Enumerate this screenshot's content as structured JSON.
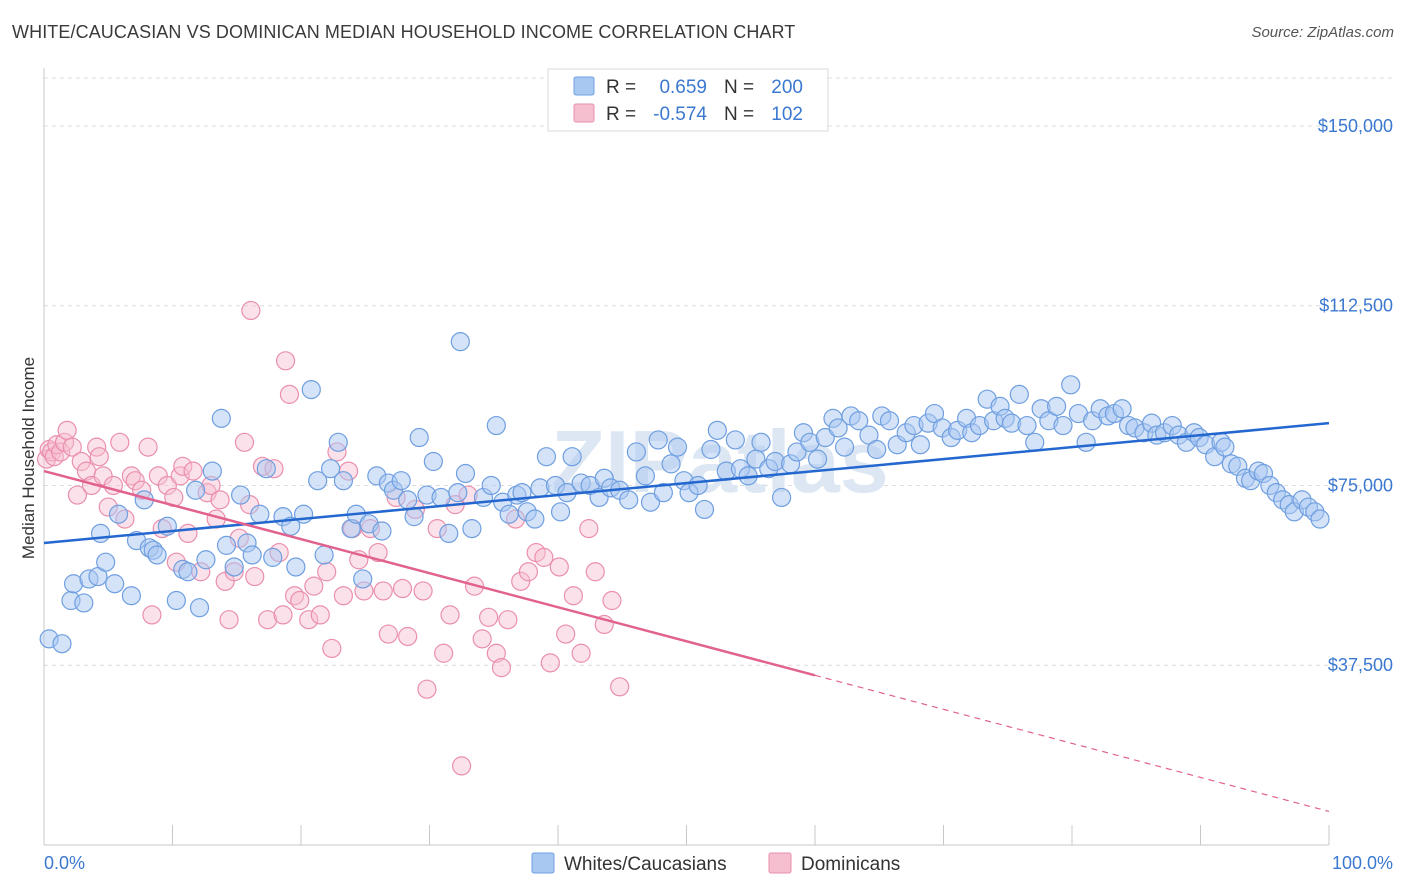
{
  "chart_data": {
    "type": "scatter",
    "title": "WHITE/CAUCASIAN VS DOMINICAN MEDIAN HOUSEHOLD INCOME CORRELATION CHART",
    "source": "Source: ZipAtlas.com",
    "watermark": "ZIPatlas",
    "xlabel": "",
    "ylabel": "Median Household Income",
    "xlim": [
      0,
      100
    ],
    "ylim": [
      0,
      160000
    ],
    "x_tick_labels": [
      "0.0%",
      "100.0%"
    ],
    "y_ticks": [
      37500,
      75000,
      112500,
      150000
    ],
    "y_tick_labels": [
      "$37,500",
      "$75,000",
      "$112,500",
      "$150,000"
    ],
    "grid": true,
    "legend_position": "bottom",
    "stats_box_position": "top-center",
    "colors": {
      "blue_fill": "#a9c8f1",
      "blue_stroke": "#6f9fe0",
      "blue_line": "#2468cf",
      "pink_fill": "#f6bfd0",
      "pink_stroke": "#ea8fad",
      "pink_line": "#e2628f",
      "axis_label_blue": "#3b78d0",
      "grid": "#dcdcdc"
    },
    "stats": [
      {
        "r_label": "R =",
        "r_value": "0.659",
        "n_label": "N =",
        "n_value": "200"
      },
      {
        "r_label": "R =",
        "r_value": "-0.574",
        "n_label": "N =",
        "n_value": "102"
      }
    ],
    "series": [
      {
        "name": "Whites/Caucasians",
        "trend": {
          "x": [
            0,
            100
          ],
          "y": [
            63000,
            88000
          ],
          "dashed_from": null
        },
        "points": [
          [
            0.4,
            43000
          ],
          [
            1.4,
            42000
          ],
          [
            2.1,
            51000
          ],
          [
            2.3,
            54500
          ],
          [
            3.1,
            50500
          ],
          [
            3.5,
            55500
          ],
          [
            4.2,
            56000
          ],
          [
            4.4,
            65000
          ],
          [
            4.8,
            59000
          ],
          [
            5.5,
            54500
          ],
          [
            5.8,
            69000
          ],
          [
            6.8,
            52000
          ],
          [
            7.2,
            63500
          ],
          [
            7.8,
            72000
          ],
          [
            8.2,
            62000
          ],
          [
            8.5,
            61500
          ],
          [
            8.8,
            60500
          ],
          [
            9.6,
            66500
          ],
          [
            10.3,
            51000
          ],
          [
            10.8,
            57500
          ],
          [
            11.2,
            57000
          ],
          [
            11.8,
            74000
          ],
          [
            12.1,
            49500
          ],
          [
            12.6,
            59500
          ],
          [
            13.1,
            78000
          ],
          [
            13.8,
            89000
          ],
          [
            14.2,
            62500
          ],
          [
            14.8,
            58000
          ],
          [
            15.3,
            73000
          ],
          [
            15.8,
            63000
          ],
          [
            16.2,
            60500
          ],
          [
            16.8,
            69000
          ],
          [
            17.3,
            78500
          ],
          [
            17.8,
            60000
          ],
          [
            18.6,
            68500
          ],
          [
            19.2,
            66500
          ],
          [
            19.6,
            58000
          ],
          [
            20.2,
            69000
          ],
          [
            20.8,
            95000
          ],
          [
            21.3,
            76000
          ],
          [
            21.8,
            60500
          ],
          [
            22.3,
            78500
          ],
          [
            22.9,
            84000
          ],
          [
            23.3,
            76000
          ],
          [
            23.9,
            66000
          ],
          [
            24.3,
            69000
          ],
          [
            24.8,
            55500
          ],
          [
            25.3,
            67000
          ],
          [
            25.9,
            77000
          ],
          [
            26.3,
            65500
          ],
          [
            26.8,
            75500
          ],
          [
            27.2,
            74000
          ],
          [
            27.8,
            76000
          ],
          [
            28.3,
            72000
          ],
          [
            28.8,
            68500
          ],
          [
            29.2,
            85000
          ],
          [
            29.8,
            73000
          ],
          [
            30.3,
            80000
          ],
          [
            30.9,
            72500
          ],
          [
            31.5,
            65000
          ],
          [
            32.2,
            73500
          ],
          [
            32.4,
            105000
          ],
          [
            32.8,
            77500
          ],
          [
            33.3,
            66000
          ],
          [
            34.2,
            72500
          ],
          [
            34.8,
            75000
          ],
          [
            35.2,
            87500
          ],
          [
            35.7,
            71500
          ],
          [
            36.2,
            69000
          ],
          [
            36.8,
            73000
          ],
          [
            37.2,
            73500
          ],
          [
            37.6,
            69500
          ],
          [
            38.2,
            68000
          ],
          [
            38.6,
            74500
          ],
          [
            39.1,
            81000
          ],
          [
            39.8,
            75000
          ],
          [
            40.2,
            69500
          ],
          [
            40.7,
            73500
          ],
          [
            41.1,
            81000
          ],
          [
            41.8,
            75500
          ],
          [
            42.5,
            75000
          ],
          [
            43.2,
            72500
          ],
          [
            43.6,
            76500
          ],
          [
            44.1,
            74500
          ],
          [
            44.8,
            74000
          ],
          [
            45.5,
            72000
          ],
          [
            46.1,
            82000
          ],
          [
            46.8,
            77000
          ],
          [
            47.2,
            71500
          ],
          [
            47.8,
            84500
          ],
          [
            48.2,
            73500
          ],
          [
            48.8,
            79500
          ],
          [
            49.3,
            83000
          ],
          [
            49.8,
            76000
          ],
          [
            50.2,
            73500
          ],
          [
            50.9,
            75000
          ],
          [
            51.4,
            70000
          ],
          [
            51.9,
            82500
          ],
          [
            52.4,
            86500
          ],
          [
            53.1,
            78000
          ],
          [
            53.8,
            84500
          ],
          [
            54.2,
            78500
          ],
          [
            54.8,
            77000
          ],
          [
            55.4,
            80500
          ],
          [
            55.8,
            84000
          ],
          [
            56.4,
            78500
          ],
          [
            56.9,
            80000
          ],
          [
            57.4,
            72500
          ],
          [
            58.1,
            79500
          ],
          [
            58.6,
            82000
          ],
          [
            59.1,
            86000
          ],
          [
            59.6,
            84000
          ],
          [
            60.2,
            80500
          ],
          [
            60.8,
            85000
          ],
          [
            61.4,
            89000
          ],
          [
            61.8,
            87000
          ],
          [
            62.3,
            83000
          ],
          [
            62.8,
            89500
          ],
          [
            63.4,
            88500
          ],
          [
            64.2,
            85500
          ],
          [
            64.8,
            82500
          ],
          [
            65.2,
            89500
          ],
          [
            65.8,
            88500
          ],
          [
            66.4,
            83500
          ],
          [
            67.1,
            86000
          ],
          [
            67.7,
            87500
          ],
          [
            68.2,
            83500
          ],
          [
            68.8,
            88000
          ],
          [
            69.3,
            90000
          ],
          [
            69.9,
            87000
          ],
          [
            70.6,
            85000
          ],
          [
            71.1,
            86500
          ],
          [
            71.8,
            89000
          ],
          [
            72.2,
            86000
          ],
          [
            72.8,
            87500
          ],
          [
            73.4,
            93000
          ],
          [
            73.9,
            88500
          ],
          [
            74.4,
            91500
          ],
          [
            74.8,
            89000
          ],
          [
            75.3,
            88000
          ],
          [
            75.9,
            94000
          ],
          [
            76.5,
            87500
          ],
          [
            77.1,
            84000
          ],
          [
            77.6,
            91000
          ],
          [
            78.2,
            88500
          ],
          [
            78.8,
            91500
          ],
          [
            79.3,
            87500
          ],
          [
            79.9,
            96000
          ],
          [
            80.5,
            90000
          ],
          [
            81.1,
            84000
          ],
          [
            81.6,
            88500
          ],
          [
            82.2,
            91000
          ],
          [
            82.8,
            89500
          ],
          [
            83.3,
            90000
          ],
          [
            83.9,
            91000
          ],
          [
            84.4,
            87500
          ],
          [
            84.9,
            87000
          ],
          [
            85.6,
            86000
          ],
          [
            86.2,
            88000
          ],
          [
            86.6,
            85500
          ],
          [
            87.2,
            86000
          ],
          [
            87.8,
            87500
          ],
          [
            88.3,
            85500
          ],
          [
            88.9,
            84000
          ],
          [
            89.5,
            86000
          ],
          [
            89.9,
            85000
          ],
          [
            90.4,
            83500
          ],
          [
            91.1,
            81000
          ],
          [
            91.6,
            84000
          ],
          [
            91.9,
            83000
          ],
          [
            92.4,
            79500
          ],
          [
            92.9,
            79000
          ],
          [
            93.5,
            76500
          ],
          [
            93.9,
            76000
          ],
          [
            94.5,
            78000
          ],
          [
            94.9,
            77500
          ],
          [
            95.4,
            75000
          ],
          [
            95.9,
            73500
          ],
          [
            96.4,
            72000
          ],
          [
            96.9,
            71000
          ],
          [
            97.3,
            69500
          ],
          [
            97.9,
            72000
          ],
          [
            98.4,
            70500
          ],
          [
            98.9,
            69500
          ],
          [
            99.3,
            68000
          ]
        ]
      },
      {
        "name": "Dominicans",
        "trend": {
          "x": [
            0,
            100
          ],
          "y": [
            78000,
            7000
          ],
          "dashed_from": 60
        }
      }
    ],
    "pink_points": [
      [
        0.2,
        80500
      ],
      [
        0.4,
        82500
      ],
      [
        0.6,
        82000
      ],
      [
        0.8,
        81000
      ],
      [
        1.0,
        83500
      ],
      [
        1.3,
        82000
      ],
      [
        1.6,
        84000
      ],
      [
        1.8,
        86500
      ],
      [
        2.2,
        83000
      ],
      [
        2.6,
        73000
      ],
      [
        2.9,
        80000
      ],
      [
        3.3,
        78000
      ],
      [
        3.7,
        75000
      ],
      [
        4.1,
        83000
      ],
      [
        4.3,
        81000
      ],
      [
        4.6,
        77000
      ],
      [
        5.0,
        70500
      ],
      [
        5.4,
        75000
      ],
      [
        5.9,
        84000
      ],
      [
        6.3,
        68000
      ],
      [
        6.8,
        77000
      ],
      [
        7.1,
        76000
      ],
      [
        7.6,
        74000
      ],
      [
        8.1,
        83000
      ],
      [
        8.4,
        48000
      ],
      [
        8.9,
        77000
      ],
      [
        9.2,
        66000
      ],
      [
        9.6,
        75000
      ],
      [
        10.1,
        72500
      ],
      [
        10.3,
        59000
      ],
      [
        10.6,
        77000
      ],
      [
        10.8,
        79000
      ],
      [
        11.2,
        65000
      ],
      [
        11.6,
        78000
      ],
      [
        12.2,
        57000
      ],
      [
        12.7,
        73500
      ],
      [
        13.0,
        75000
      ],
      [
        13.4,
        68000
      ],
      [
        13.7,
        72000
      ],
      [
        14.1,
        55000
      ],
      [
        14.4,
        47000
      ],
      [
        14.8,
        57000
      ],
      [
        15.2,
        64000
      ],
      [
        15.6,
        84000
      ],
      [
        16.0,
        71000
      ],
      [
        16.1,
        111500
      ],
      [
        16.4,
        56000
      ],
      [
        17.0,
        79000
      ],
      [
        17.4,
        47000
      ],
      [
        17.9,
        78500
      ],
      [
        18.3,
        61000
      ],
      [
        18.6,
        48000
      ],
      [
        18.8,
        101000
      ],
      [
        19.1,
        94000
      ],
      [
        19.5,
        52000
      ],
      [
        19.9,
        51000
      ],
      [
        20.6,
        47000
      ],
      [
        21.0,
        54000
      ],
      [
        21.5,
        48000
      ],
      [
        22.0,
        57000
      ],
      [
        22.4,
        41000
      ],
      [
        22.8,
        82000
      ],
      [
        23.3,
        52000
      ],
      [
        23.7,
        78000
      ],
      [
        24.0,
        66000
      ],
      [
        24.5,
        59500
      ],
      [
        24.9,
        53000
      ],
      [
        25.4,
        66000
      ],
      [
        26.0,
        61000
      ],
      [
        26.4,
        53000
      ],
      [
        26.8,
        44000
      ],
      [
        27.4,
        72500
      ],
      [
        27.9,
        53500
      ],
      [
        28.3,
        43500
      ],
      [
        28.9,
        70000
      ],
      [
        29.5,
        53000
      ],
      [
        29.8,
        32500
      ],
      [
        30.6,
        66000
      ],
      [
        31.1,
        40000
      ],
      [
        31.6,
        48000
      ],
      [
        32.0,
        71000
      ],
      [
        32.5,
        16500
      ],
      [
        33.0,
        73000
      ],
      [
        33.5,
        54000
      ],
      [
        34.1,
        43000
      ],
      [
        34.6,
        47500
      ],
      [
        35.2,
        40000
      ],
      [
        35.6,
        37000
      ],
      [
        36.1,
        47000
      ],
      [
        36.7,
        68000
      ],
      [
        37.1,
        55000
      ],
      [
        37.7,
        57000
      ],
      [
        38.3,
        61000
      ],
      [
        38.9,
        60000
      ],
      [
        39.4,
        38000
      ],
      [
        40.1,
        58000
      ],
      [
        40.6,
        44000
      ],
      [
        41.2,
        52000
      ],
      [
        41.8,
        40000
      ],
      [
        42.4,
        66000
      ],
      [
        42.9,
        57000
      ],
      [
        43.6,
        46000
      ],
      [
        44.2,
        51000
      ],
      [
        44.8,
        33000
      ]
    ]
  },
  "legend": {
    "items": [
      {
        "label": "Whites/Caucasians"
      },
      {
        "label": "Dominicans"
      }
    ]
  }
}
